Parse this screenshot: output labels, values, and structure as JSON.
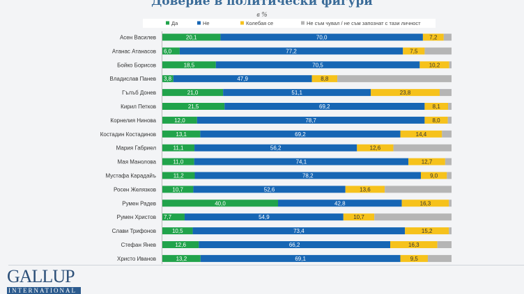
{
  "chart_data": {
    "type": "bar",
    "orientation": "horizontal",
    "stacked": true,
    "title": "Доверие в политически фигури",
    "subtitle": "в %",
    "legend_position": "top",
    "grid": false,
    "xlim": [
      0,
      100
    ],
    "categories": [
      "Асен Василев",
      "Атанас Атанасов",
      "Бойко Борисов",
      "Владислав Панев",
      "Гълъб Донев",
      "Кирил Петков",
      "Корнелия Нинова",
      "Костадин Костадинов",
      "Мария Габриел",
      "Мая Манолова",
      "Мустафа Карадайъ",
      "Росен Желязков",
      "Румен Радев",
      "Румен Христов",
      "Слави Трифонов",
      "Стефан Янев",
      "Христо Иванов"
    ],
    "series": [
      {
        "name": "Да",
        "color": "#21a34b",
        "values": [
          20.1,
          6.0,
          18.5,
          3.8,
          21.0,
          21.5,
          12.0,
          13.1,
          11.1,
          11.0,
          11.2,
          10.7,
          40.0,
          7.7,
          10.5,
          12.6,
          13.2
        ]
      },
      {
        "name": "Не",
        "color": "#1766b4",
        "values": [
          70.0,
          77.2,
          70.5,
          47.9,
          51.1,
          69.2,
          78.7,
          69.2,
          56.2,
          74.1,
          78.2,
          52.6,
          42.8,
          54.9,
          73.4,
          66.2,
          69.1
        ]
      },
      {
        "name": "Колебая се",
        "color": "#f6c21c",
        "values": [
          7.2,
          7.5,
          10.2,
          8.8,
          23.8,
          8.1,
          8.0,
          14.4,
          12.6,
          12.7,
          9.0,
          13.6,
          16.3,
          10.7,
          15.2,
          16.3,
          9.5
        ]
      },
      {
        "name": "Не съм чувал / не съм запознат с тази личност",
        "color": "#b5b5b5"
      }
    ]
  },
  "logo": {
    "text": "GALLUP",
    "subtext": "INTERNATIONAL"
  }
}
